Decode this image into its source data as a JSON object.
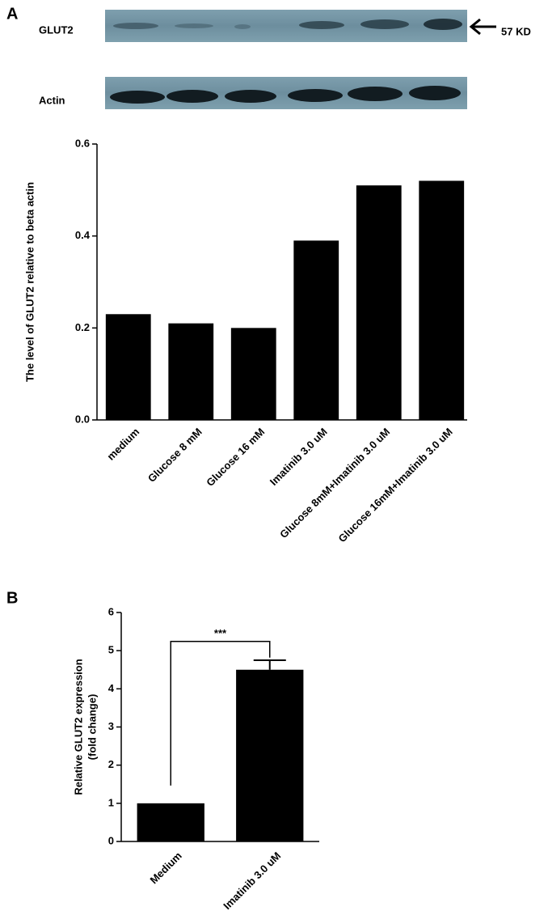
{
  "panels": [
    "A",
    "B"
  ],
  "blot": {
    "labels": [
      "GLUT2",
      "Actin"
    ],
    "marker": "57 KD"
  },
  "chart_data": [
    {
      "type": "bar",
      "ylabel": "The level of GLUT2 relative to beta actin",
      "categories": [
        "medium",
        "Glucose 8 mM",
        "Glucose 16 mM",
        "Imatinib 3.0 uM",
        "Glucose 8mM+Imatinib 3.0 uM",
        "Glucose 16mM+Imatinib 3.0 uM"
      ],
      "values": [
        0.23,
        0.21,
        0.2,
        0.39,
        0.51,
        0.52
      ],
      "color": "#000000",
      "ylim": [
        0,
        0.6
      ],
      "yticks": [
        {
          "value": 0,
          "label": "0.0"
        },
        0.2,
        0.4,
        0.6
      ],
      "grid": false
    },
    {
      "type": "bar",
      "ylabel": [
        "Relative GLUT2 expression",
        "(fold change)"
      ],
      "categories": [
        "Medium",
        "Imatinib 3.0 uM"
      ],
      "values": [
        1,
        4.5
      ],
      "errors": [
        null,
        0.25
      ],
      "annotation": "***",
      "color": "#000000",
      "ylim": [
        0,
        6
      ],
      "yticks": [
        0,
        1,
        2,
        3,
        4,
        5,
        6
      ],
      "grid": false
    }
  ]
}
